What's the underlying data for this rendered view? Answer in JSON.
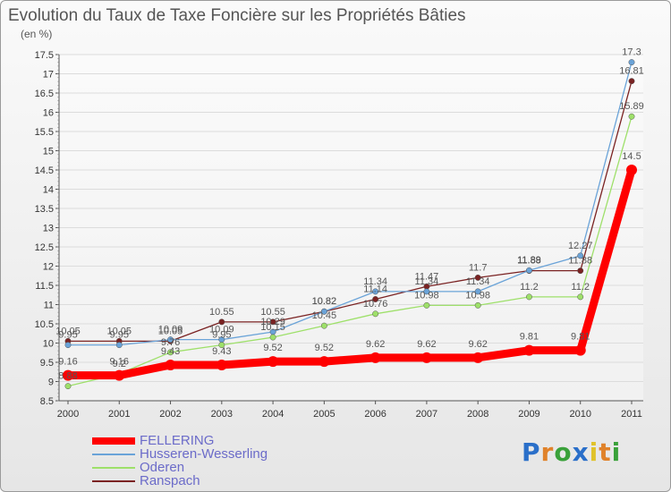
{
  "title": "Evolution du Taux de Taxe Foncière sur les Propriétés Bâties",
  "subtitle": "(en %)",
  "brand": {
    "letters": [
      "P",
      "r",
      "o",
      "x",
      "i",
      "t",
      "i"
    ],
    "colors": [
      "#2a6fc9",
      "#e0822a",
      "#3aa13a",
      "#2a6fc9",
      "#e0c22a",
      "#e0822a",
      "#3aa13a"
    ]
  },
  "chart_data": {
    "type": "line",
    "title": "Evolution du Taux de Taxe Foncière sur les Propriétés Bâties",
    "ylabel": "(en %)",
    "ylim": [
      8.5,
      17.5
    ],
    "yticks": [
      8.5,
      9,
      9.5,
      10,
      10.5,
      11,
      11.5,
      12,
      12.5,
      13,
      13.5,
      14,
      14.5,
      15,
      15.5,
      16,
      16.5,
      17,
      17.5
    ],
    "x": [
      "2000",
      "2001",
      "2002",
      "2003",
      "2004",
      "2005",
      "2006",
      "2007",
      "2008",
      "2009",
      "2010",
      "2011"
    ],
    "series": [
      {
        "name": "FELLERING",
        "color": "#ff0000",
        "values": [
          9.16,
          9.16,
          9.43,
          9.43,
          9.52,
          9.52,
          9.62,
          9.62,
          9.62,
          9.81,
          9.81,
          14.5
        ],
        "labels": [
          "9.16",
          "9.16",
          "9.43",
          "9.43",
          "9.52",
          "9.52",
          "9.62",
          "9.62",
          "9.62",
          "9.81",
          "9.81",
          "14.5"
        ]
      },
      {
        "name": "Husseren-Wesserling",
        "color": "#6aa3d8",
        "values": [
          9.95,
          9.95,
          10.09,
          10.09,
          10.29,
          10.82,
          11.34,
          11.34,
          11.34,
          11.89,
          12.27,
          17.3
        ],
        "labels": [
          "9.95",
          "9.95",
          "10.09",
          "10.09",
          "10.29",
          "10.82",
          "11.34",
          "11.34",
          "11.34",
          "11.89",
          "12.27",
          "17.3"
        ]
      },
      {
        "name": "Oderen",
        "color": "#9ee06a",
        "values": [
          8.88,
          9.2,
          9.76,
          9.95,
          10.15,
          10.45,
          10.76,
          10.98,
          10.98,
          11.2,
          11.2,
          15.89
        ],
        "labels": [
          "8.88",
          "9.2",
          "9.76",
          "9.95",
          "10.15",
          "10.45",
          "10.76",
          "10.98",
          "10.98",
          "11.2",
          "11.2",
          "15.89"
        ]
      },
      {
        "name": "Ranspach",
        "color": "#7a2222",
        "values": [
          10.05,
          10.05,
          10.05,
          10.55,
          10.55,
          10.82,
          11.14,
          11.47,
          11.7,
          11.88,
          11.88,
          16.81
        ],
        "labels": [
          "10.05",
          "10.05",
          "10.05",
          "10.55",
          "10.55",
          "10.82",
          "11.14",
          "11.47",
          "11.7",
          "11.88",
          "11.88",
          "16.81"
        ]
      }
    ]
  }
}
